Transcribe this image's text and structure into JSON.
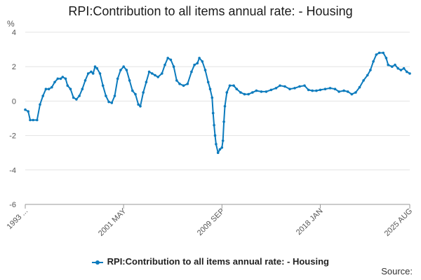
{
  "colors": {
    "series": "#0c7bbd",
    "grid": "#e3e3e3",
    "axis": "#999999",
    "text": "#555555"
  },
  "source_label": "Source:",
  "chart_data": {
    "type": "line",
    "title": "RPI:Contribution to all items annual rate: - Housing",
    "ylabel": "%",
    "xlabel": "",
    "ylim": [
      -6,
      4
    ],
    "yticks": [
      -6,
      -4,
      -2,
      0,
      2,
      4
    ],
    "xlim": [
      "1993-01",
      "2025-08"
    ],
    "xticks": [
      {
        "label": "1993 ...",
        "date": "1993-01"
      },
      {
        "label": "2001 MAY",
        "date": "2001-05"
      },
      {
        "label": "2009 SEP",
        "date": "2009-09"
      },
      {
        "label": "2018 JAN",
        "date": "2018-01"
      },
      {
        "label": "2025 AUG",
        "date": "2025-08"
      }
    ],
    "grid": true,
    "legend_position": "bottom",
    "series": [
      {
        "name": "RPI:Contribution to all items annual rate: - Housing",
        "points": [
          [
            "1993-01",
            -0.5
          ],
          [
            "1993-04",
            -0.6
          ],
          [
            "1993-06",
            -1.1
          ],
          [
            "1993-09",
            -1.1
          ],
          [
            "1994-01",
            -1.1
          ],
          [
            "1994-04",
            -0.2
          ],
          [
            "1994-07",
            0.3
          ],
          [
            "1994-10",
            0.7
          ],
          [
            "1995-01",
            0.7
          ],
          [
            "1995-04",
            0.8
          ],
          [
            "1995-07",
            1.1
          ],
          [
            "1995-10",
            1.3
          ],
          [
            "1996-01",
            1.3
          ],
          [
            "1996-03",
            1.4
          ],
          [
            "1996-06",
            1.3
          ],
          [
            "1996-08",
            0.9
          ],
          [
            "1996-11",
            0.7
          ],
          [
            "1997-02",
            0.2
          ],
          [
            "1997-05",
            0.1
          ],
          [
            "1997-08",
            0.3
          ],
          [
            "1997-11",
            0.7
          ],
          [
            "1998-02",
            1.2
          ],
          [
            "1998-05",
            1.6
          ],
          [
            "1998-08",
            1.7
          ],
          [
            "1998-10",
            1.6
          ],
          [
            "1998-12",
            2.0
          ],
          [
            "1999-02",
            1.9
          ],
          [
            "1999-05",
            1.6
          ],
          [
            "1999-08",
            0.9
          ],
          [
            "1999-11",
            0.3
          ],
          [
            "2000-02",
            -0.05
          ],
          [
            "2000-05",
            -0.1
          ],
          [
            "2000-08",
            0.3
          ],
          [
            "2000-11",
            1.3
          ],
          [
            "2001-02",
            1.8
          ],
          [
            "2001-05",
            2.0
          ],
          [
            "2001-08",
            1.8
          ],
          [
            "2001-11",
            1.2
          ],
          [
            "2002-02",
            0.6
          ],
          [
            "2002-05",
            0.4
          ],
          [
            "2002-08",
            -0.2
          ],
          [
            "2002-10",
            -0.3
          ],
          [
            "2003-01",
            0.5
          ],
          [
            "2003-04",
            1.1
          ],
          [
            "2003-07",
            1.7
          ],
          [
            "2003-10",
            1.6
          ],
          [
            "2004-01",
            1.5
          ],
          [
            "2004-04",
            1.4
          ],
          [
            "2004-08",
            1.6
          ],
          [
            "2004-11",
            2.1
          ],
          [
            "2005-02",
            2.5
          ],
          [
            "2005-05",
            2.4
          ],
          [
            "2005-08",
            2.0
          ],
          [
            "2005-11",
            1.2
          ],
          [
            "2006-02",
            1.0
          ],
          [
            "2006-06",
            0.9
          ],
          [
            "2006-10",
            1.0
          ],
          [
            "2007-02",
            1.7
          ],
          [
            "2007-05",
            2.1
          ],
          [
            "2007-08",
            2.2
          ],
          [
            "2007-10",
            2.5
          ],
          [
            "2008-01",
            2.3
          ],
          [
            "2008-04",
            1.8
          ],
          [
            "2008-07",
            1.1
          ],
          [
            "2008-09",
            0.7
          ],
          [
            "2008-11",
            0.2
          ],
          [
            "2008-12",
            -0.7
          ],
          [
            "2009-01",
            -1.4
          ],
          [
            "2009-02",
            -2.0
          ],
          [
            "2009-03",
            -2.5
          ],
          [
            "2009-05",
            -3.0
          ],
          [
            "2009-07",
            -2.8
          ],
          [
            "2009-09",
            -2.7
          ],
          [
            "2009-10",
            -2.3
          ],
          [
            "2009-11",
            -1.2
          ],
          [
            "2009-12",
            -0.3
          ],
          [
            "2010-02",
            0.5
          ],
          [
            "2010-05",
            0.9
          ],
          [
            "2010-09",
            0.9
          ],
          [
            "2010-12",
            0.7
          ],
          [
            "2011-04",
            0.5
          ],
          [
            "2011-08",
            0.4
          ],
          [
            "2011-12",
            0.4
          ],
          [
            "2012-04",
            0.5
          ],
          [
            "2012-08",
            0.6
          ],
          [
            "2013-01",
            0.55
          ],
          [
            "2013-06",
            0.55
          ],
          [
            "2013-11",
            0.65
          ],
          [
            "2014-04",
            0.75
          ],
          [
            "2014-08",
            0.9
          ],
          [
            "2015-01",
            0.85
          ],
          [
            "2015-06",
            0.7
          ],
          [
            "2015-11",
            0.75
          ],
          [
            "2016-04",
            0.85
          ],
          [
            "2016-09",
            0.9
          ],
          [
            "2017-01",
            0.65
          ],
          [
            "2017-05",
            0.6
          ],
          [
            "2017-09",
            0.6
          ],
          [
            "2018-01",
            0.65
          ],
          [
            "2018-06",
            0.7
          ],
          [
            "2018-11",
            0.75
          ],
          [
            "2019-04",
            0.7
          ],
          [
            "2019-08",
            0.55
          ],
          [
            "2020-01",
            0.6
          ],
          [
            "2020-05",
            0.55
          ],
          [
            "2020-09",
            0.4
          ],
          [
            "2021-01",
            0.5
          ],
          [
            "2021-05",
            0.8
          ],
          [
            "2021-09",
            1.2
          ],
          [
            "2022-01",
            1.5
          ],
          [
            "2022-04",
            1.8
          ],
          [
            "2022-07",
            2.3
          ],
          [
            "2022-10",
            2.7
          ],
          [
            "2023-01",
            2.8
          ],
          [
            "2023-05",
            2.8
          ],
          [
            "2023-08",
            2.5
          ],
          [
            "2023-10",
            2.1
          ],
          [
            "2024-02",
            2.0
          ],
          [
            "2024-05",
            2.1
          ],
          [
            "2024-08",
            1.9
          ],
          [
            "2024-11",
            1.8
          ],
          [
            "2025-02",
            1.9
          ],
          [
            "2025-05",
            1.7
          ],
          [
            "2025-08",
            1.6
          ]
        ]
      }
    ]
  }
}
